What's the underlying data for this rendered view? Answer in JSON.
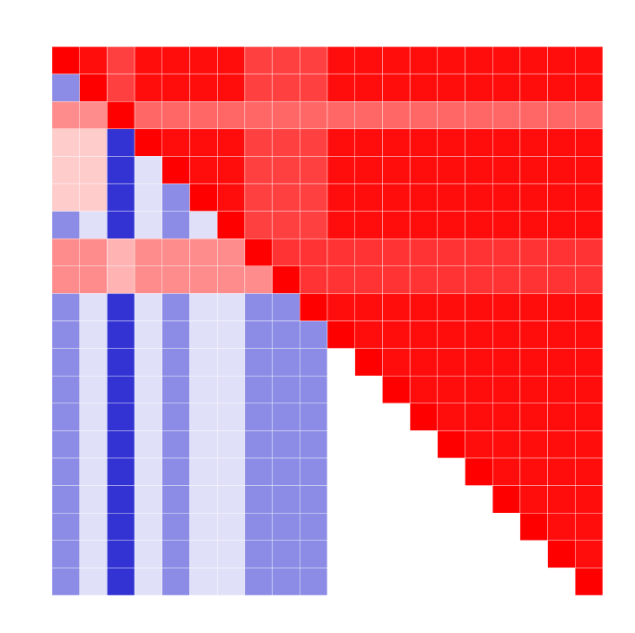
{
  "chart_data": {
    "type": "heatmap",
    "vlim": [
      -1,
      1
    ],
    "colors": {
      "low": "#0000c8",
      "mid": "#ffffff",
      "high": "#ff0000"
    },
    "matrix": [
      [
        1,
        0.95,
        0.75,
        0.95,
        0.95,
        0.95,
        0.95,
        0.75,
        0.75,
        0.75,
        0.95,
        0.95,
        0.95,
        0.95,
        0.95,
        0.95,
        0.95,
        0.95,
        0.95,
        0.95
      ],
      [
        -0.45,
        1,
        0.75,
        0.95,
        0.95,
        0.95,
        0.95,
        0.75,
        0.75,
        0.75,
        0.95,
        0.95,
        0.95,
        0.95,
        0.95,
        0.95,
        0.95,
        0.95,
        0.95,
        0.95
      ],
      [
        0.45,
        0.45,
        1,
        0.6,
        0.6,
        0.6,
        0.6,
        0.6,
        0.6,
        0.6,
        0.6,
        0.6,
        0.6,
        0.6,
        0.6,
        0.6,
        0.6,
        0.6,
        0.6,
        0.6
      ],
      [
        0.2,
        0.2,
        -0.8,
        1,
        0.95,
        0.95,
        0.95,
        0.75,
        0.75,
        0.75,
        0.95,
        0.95,
        0.95,
        0.95,
        0.95,
        0.95,
        0.95,
        0.95,
        0.95,
        0.95
      ],
      [
        0.2,
        0.2,
        -0.8,
        -0.12,
        1,
        0.95,
        0.95,
        0.75,
        0.75,
        0.75,
        0.95,
        0.95,
        0.95,
        0.95,
        0.95,
        0.95,
        0.95,
        0.95,
        0.95,
        0.95
      ],
      [
        0.2,
        0.2,
        -0.8,
        -0.12,
        -0.45,
        1,
        0.95,
        0.75,
        0.75,
        0.75,
        0.95,
        0.95,
        0.95,
        0.95,
        0.95,
        0.95,
        0.95,
        0.95,
        0.95,
        0.95
      ],
      [
        -0.45,
        -0.12,
        -0.8,
        -0.12,
        -0.45,
        -0.12,
        1,
        0.75,
        0.75,
        0.75,
        0.95,
        0.95,
        0.95,
        0.95,
        0.95,
        0.95,
        0.95,
        0.95,
        0.95,
        0.95
      ],
      [
        0.45,
        0.45,
        0.3,
        0.45,
        0.45,
        0.45,
        0.45,
        1,
        0.8,
        0.8,
        0.8,
        0.8,
        0.8,
        0.8,
        0.8,
        0.8,
        0.8,
        0.8,
        0.8,
        0.8
      ],
      [
        0.45,
        0.45,
        0.3,
        0.45,
        0.45,
        0.45,
        0.45,
        0.45,
        1,
        0.8,
        0.8,
        0.8,
        0.8,
        0.8,
        0.8,
        0.8,
        0.8,
        0.8,
        0.8,
        0.8
      ],
      [
        -0.45,
        -0.12,
        -0.8,
        -0.12,
        -0.45,
        -0.12,
        -0.12,
        -0.45,
        -0.45,
        1,
        0.95,
        0.95,
        0.95,
        0.95,
        0.95,
        0.95,
        0.95,
        0.95,
        0.95,
        0.95
      ],
      [
        -0.45,
        -0.12,
        -0.8,
        -0.12,
        -0.45,
        -0.12,
        -0.12,
        -0.45,
        -0.45,
        -0.45,
        1,
        0.95,
        0.95,
        0.95,
        0.95,
        0.95,
        0.95,
        0.95,
        0.95,
        0.95
      ],
      [
        -0.45,
        -0.12,
        -0.8,
        -0.12,
        -0.45,
        -0.12,
        -0.12,
        -0.45,
        -0.45,
        -0.45,
        0,
        1,
        0.95,
        0.95,
        0.95,
        0.95,
        0.95,
        0.95,
        0.95,
        0.95
      ],
      [
        -0.45,
        -0.12,
        -0.8,
        -0.12,
        -0.45,
        -0.12,
        -0.12,
        -0.45,
        -0.45,
        -0.45,
        0,
        0,
        1,
        0.95,
        0.95,
        0.95,
        0.95,
        0.95,
        0.95,
        0.95
      ],
      [
        -0.45,
        -0.12,
        -0.8,
        -0.12,
        -0.45,
        -0.12,
        -0.12,
        -0.45,
        -0.45,
        -0.45,
        0,
        0,
        0,
        1,
        0.95,
        0.95,
        0.95,
        0.95,
        0.95,
        0.95
      ],
      [
        -0.45,
        -0.12,
        -0.8,
        -0.12,
        -0.45,
        -0.12,
        -0.12,
        -0.45,
        -0.45,
        -0.45,
        0,
        0,
        0,
        0,
        1,
        0.95,
        0.95,
        0.95,
        0.95,
        0.95
      ],
      [
        -0.45,
        -0.12,
        -0.8,
        -0.12,
        -0.45,
        -0.12,
        -0.12,
        -0.45,
        -0.45,
        -0.45,
        0,
        0,
        0,
        0,
        0,
        1,
        0.95,
        0.95,
        0.95,
        0.95
      ],
      [
        -0.45,
        -0.12,
        -0.8,
        -0.12,
        -0.45,
        -0.12,
        -0.12,
        -0.45,
        -0.45,
        -0.45,
        0,
        0,
        0,
        0,
        0,
        0,
        1,
        0.95,
        0.95,
        0.95
      ],
      [
        -0.45,
        -0.12,
        -0.8,
        -0.12,
        -0.45,
        -0.12,
        -0.12,
        -0.45,
        -0.45,
        -0.45,
        0,
        0,
        0,
        0,
        0,
        0,
        0,
        1,
        0.95,
        0.95
      ],
      [
        -0.45,
        -0.12,
        -0.8,
        -0.12,
        -0.45,
        -0.12,
        -0.12,
        -0.45,
        -0.45,
        -0.45,
        0,
        0,
        0,
        0,
        0,
        0,
        0,
        0,
        1,
        0.95
      ],
      [
        -0.45,
        -0.12,
        -0.8,
        -0.12,
        -0.45,
        -0.12,
        -0.12,
        -0.45,
        -0.45,
        -0.45,
        0,
        0,
        0,
        0,
        0,
        0,
        0,
        0,
        0,
        1
      ]
    ]
  }
}
